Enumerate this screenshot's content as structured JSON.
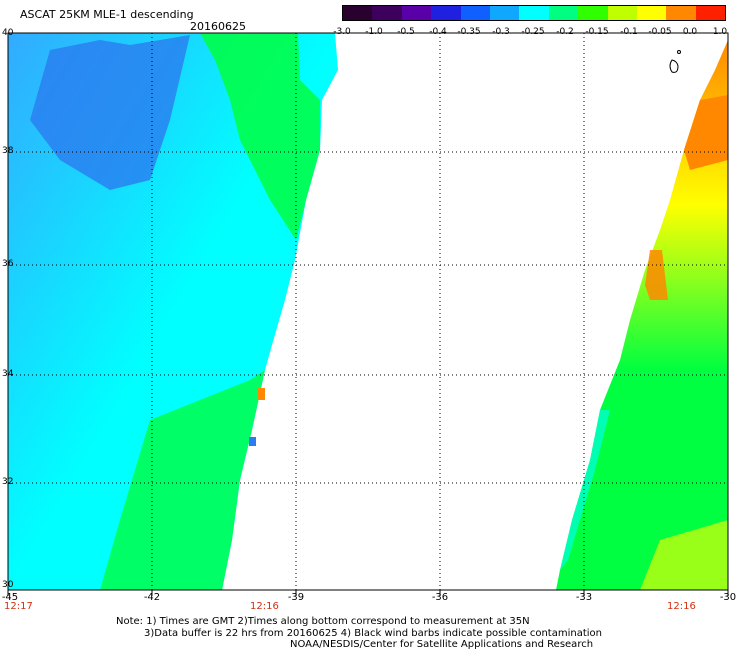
{
  "title": "ASCAT 25KM MLE-1 descending",
  "date": "20160625",
  "colorbar": {
    "ticks": [
      "-3.0",
      "-1.0",
      "-0.5",
      "-0.4",
      "-0.35",
      "-0.3",
      "-0.25",
      "-0.2",
      "-0.15",
      "-0.1",
      "-0.05",
      "0.0",
      "1.0"
    ],
    "colors": [
      "#2a002e",
      "#3d005c",
      "#5a00a8",
      "#2020e0",
      "#1060ff",
      "#10a8ff",
      "#00ffff",
      "#00ff80",
      "#30ff00",
      "#c0ff00",
      "#ffff00",
      "#ff8800",
      "#ff2000"
    ]
  },
  "axes": {
    "lat_labels": [
      "40",
      "38",
      "36",
      "34",
      "32",
      "30"
    ],
    "lon_labels": [
      "-45",
      "-42",
      "-39",
      "-36",
      "-33",
      "-30"
    ]
  },
  "time_labels": [
    "12:17",
    "12:16",
    "12:16"
  ],
  "colors": {
    "blue": "#2a7cf0",
    "light_blue": "#33aaff",
    "cyan": "#00ffff",
    "green": "#00ff40",
    "yellow": "#ffff00",
    "orange": "#ff8800",
    "time_red": "#d03010"
  },
  "notes": [
    "Note: 1) Times are GMT 2)Times along bottom correspond to measurement at 35N",
    "3)Data buffer is 22 hrs from 20160625 4) Black wind barbs indicate possible contamination",
    "NOAA/NESDIS/Center for Satellite Applications and Research"
  ]
}
